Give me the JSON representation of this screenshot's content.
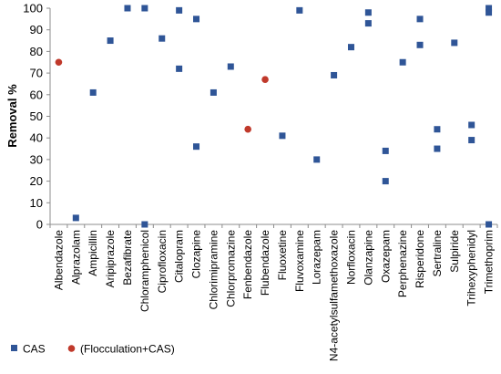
{
  "chart_data": {
    "type": "scatter",
    "ylabel": "Removal %",
    "xlabel": "",
    "ylim": [
      0,
      100
    ],
    "yticks": [
      0,
      10,
      20,
      30,
      40,
      50,
      60,
      70,
      80,
      90,
      100
    ],
    "grid": false,
    "legend_position": "bottom-left",
    "categories": [
      "Albendazole",
      "Alprazolam",
      "Ampicillin",
      "Aripiprazole",
      "Bezafibrate",
      "Chloramphenicol",
      "Ciprofloxacin",
      "Citalopram",
      "Clozapine",
      "Chlorimipramine",
      "Chlorpromazine",
      "Fenbendazole",
      "Flubendazole",
      "Fluoxetine",
      "Fluvoxamine",
      "Lorazepam",
      "N4-acetylsulfamethoxazole",
      "Norfloxacin",
      "Olanzapine",
      "Oxazepam",
      "Perphenazine",
      "Risperidone",
      "Sertraline",
      "Sulpiride",
      "Trihexyphenidyl",
      "Trimethoprim"
    ],
    "series": [
      {
        "name": "CAS",
        "marker": "square",
        "color": "#2f5597",
        "points": [
          {
            "category": "Alprazolam",
            "y": 3
          },
          {
            "category": "Ampicillin",
            "y": 61
          },
          {
            "category": "Aripiprazole",
            "y": 85
          },
          {
            "category": "Bezafibrate",
            "y": 100
          },
          {
            "category": "Chloramphenicol",
            "y": 100
          },
          {
            "category": "Chloramphenicol",
            "y": 0
          },
          {
            "category": "Ciprofloxacin",
            "y": 86
          },
          {
            "category": "Citalopram",
            "y": 99
          },
          {
            "category": "Citalopram",
            "y": 72
          },
          {
            "category": "Clozapine",
            "y": 95
          },
          {
            "category": "Clozapine",
            "y": 36
          },
          {
            "category": "Chlorimipramine",
            "y": 61
          },
          {
            "category": "Chlorpromazine",
            "y": 73
          },
          {
            "category": "Fluoxetine",
            "y": 41
          },
          {
            "category": "Fluvoxamine",
            "y": 99
          },
          {
            "category": "Lorazepam",
            "y": 30
          },
          {
            "category": "N4-acetylsulfamethoxazole",
            "y": 69
          },
          {
            "category": "Norfloxacin",
            "y": 82
          },
          {
            "category": "Olanzapine",
            "y": 98
          },
          {
            "category": "Olanzapine",
            "y": 93
          },
          {
            "category": "Oxazepam",
            "y": 34
          },
          {
            "category": "Oxazepam",
            "y": 20
          },
          {
            "category": "Perphenazine",
            "y": 75
          },
          {
            "category": "Risperidone",
            "y": 95
          },
          {
            "category": "Risperidone",
            "y": 83
          },
          {
            "category": "Sertraline",
            "y": 44
          },
          {
            "category": "Sertraline",
            "y": 35
          },
          {
            "category": "Sulpiride",
            "y": 84
          },
          {
            "category": "Trihexyphenidyl",
            "y": 46
          },
          {
            "category": "Trihexyphenidyl",
            "y": 39
          },
          {
            "category": "Trimethoprim",
            "y": 100
          },
          {
            "category": "Trimethoprim",
            "y": 98
          },
          {
            "category": "Trimethoprim",
            "y": 0
          }
        ]
      },
      {
        "name": "(Flocculation+CAS)",
        "marker": "circle",
        "color": "#c0392b",
        "points": [
          {
            "category": "Albendazole",
            "y": 75
          },
          {
            "category": "Fenbendazole",
            "y": 44
          },
          {
            "category": "Flubendazole",
            "y": 67
          }
        ]
      }
    ]
  }
}
